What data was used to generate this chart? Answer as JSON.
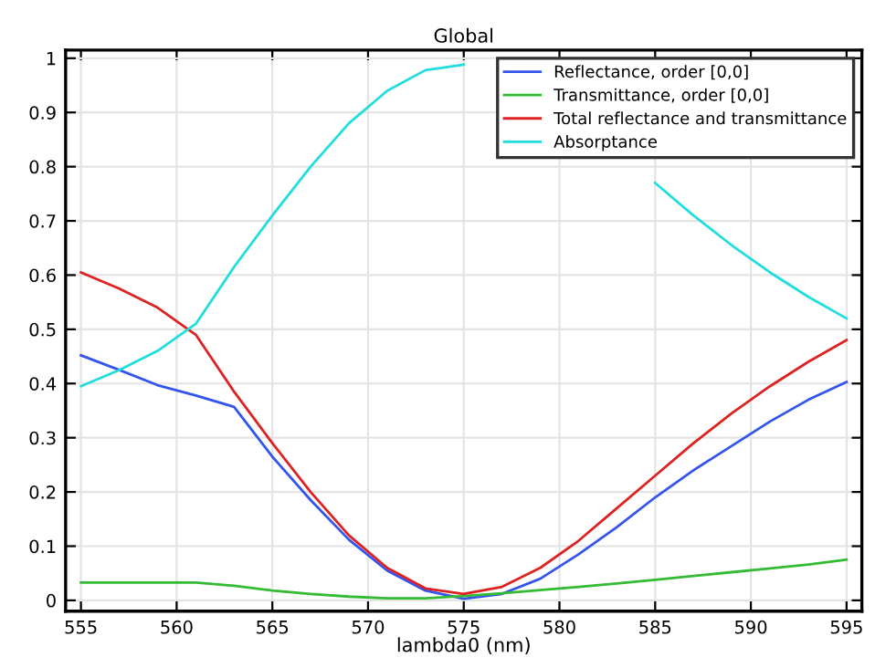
{
  "chart_data": {
    "type": "line",
    "title": "Global",
    "xlabel": "lambda0 (nm)",
    "x": [
      555,
      557,
      559,
      561,
      563,
      565,
      567,
      569,
      571,
      573,
      575,
      577,
      579,
      581,
      583,
      585,
      587,
      589,
      591,
      593,
      595
    ],
    "series": [
      {
        "name": "Reflectance, order [0,0]",
        "color": "#3355ee",
        "values": [
          0.452,
          0.425,
          0.397,
          0.378,
          0.357,
          0.265,
          0.185,
          0.112,
          0.055,
          0.018,
          0.003,
          0.012,
          0.04,
          0.085,
          0.135,
          0.19,
          0.24,
          0.285,
          0.33,
          0.37,
          0.403
        ]
      },
      {
        "name": "Transmittance, order [0,0]",
        "color": "#33bb33",
        "values": [
          0.033,
          0.033,
          0.033,
          0.033,
          0.027,
          0.018,
          0.012,
          0.007,
          0.004,
          0.004,
          0.008,
          0.013,
          0.019,
          0.025,
          0.031,
          0.038,
          0.045,
          0.052,
          0.059,
          0.066,
          0.075
        ]
      },
      {
        "name": "Total reflectance and transmittance",
        "color": "#dd2222",
        "values": [
          0.605,
          0.575,
          0.54,
          0.49,
          0.385,
          0.29,
          0.2,
          0.12,
          0.06,
          0.022,
          0.012,
          0.025,
          0.06,
          0.11,
          0.17,
          0.23,
          0.29,
          0.345,
          0.395,
          0.44,
          0.48
        ]
      },
      {
        "name": "Absorptance",
        "color": "#22dddd",
        "values": [
          0.395,
          0.425,
          0.46,
          0.51,
          0.615,
          0.71,
          0.8,
          0.88,
          0.94,
          0.978,
          0.988,
          null,
          null,
          null,
          null,
          0.77,
          0.71,
          0.655,
          0.605,
          0.56,
          0.52
        ]
      }
    ],
    "xlim": [
      554.2,
      595.8
    ],
    "ylim": [
      -0.02,
      1.015
    ],
    "xticks": [
      555,
      560,
      565,
      570,
      575,
      580,
      585,
      590,
      595
    ],
    "yticks": [
      0,
      0.1,
      0.2,
      0.3,
      0.4,
      0.5,
      0.6,
      0.7,
      0.8,
      0.9,
      1
    ],
    "grid": true,
    "legend": "top right",
    "marker": "none",
    "line_style": "solid"
  }
}
